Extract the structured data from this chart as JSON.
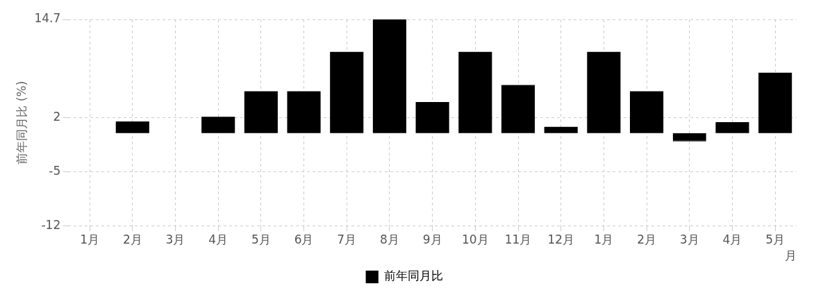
{
  "chart_data": {
    "type": "bar",
    "ylabel": "前年同月比 (%)",
    "xlabel": "月",
    "categories": [
      "1月",
      "2月",
      "3月",
      "4月",
      "5月",
      "6月",
      "7月",
      "8月",
      "9月",
      "10月",
      "11月",
      "12月",
      "1月",
      "2月",
      "3月",
      "4月",
      "5月"
    ],
    "series": [
      {
        "name": "前年同月比",
        "color": "#000000",
        "values": [
          0,
          1.5,
          0,
          2.1,
          5.4,
          5.4,
          10.5,
          14.7,
          4.0,
          10.5,
          6.2,
          0.8,
          10.5,
          5.4,
          -1.1,
          1.4,
          7.8
        ]
      }
    ],
    "ylim": [
      -12,
      14.7
    ],
    "yticks": [
      -12,
      -5,
      2,
      14.7
    ],
    "grid": true,
    "legend": "bottom"
  }
}
